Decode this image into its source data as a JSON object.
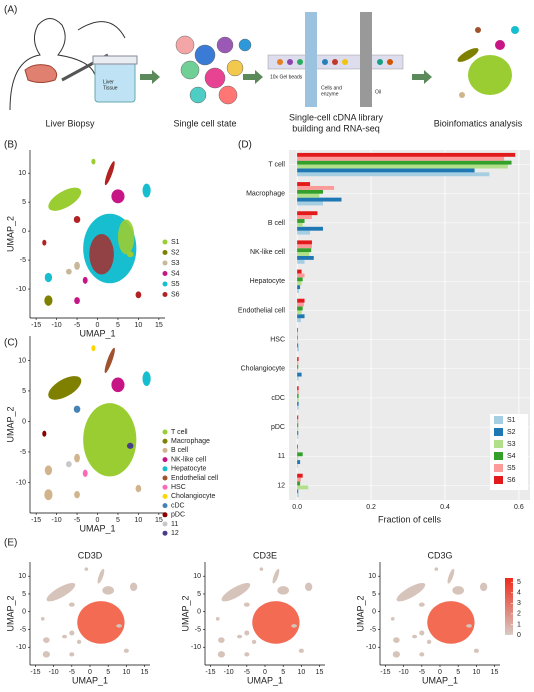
{
  "panel_labels": [
    "(A)",
    "(B)",
    "(C)",
    "(D)",
    "(E)"
  ],
  "diagram": {
    "steps": [
      [
        "Liver Biopsy"
      ],
      [
        "Single cell state"
      ],
      [
        "Single-cell cDNA library",
        "building and RNA-seq"
      ],
      [
        "Bioinfomatics analysis"
      ]
    ],
    "annotations": [
      "Liver",
      "Tissue",
      "10x Gel beads",
      "Cells and",
      "enzyme",
      "Oil"
    ]
  },
  "chart_data": [
    {
      "type": "scatter",
      "xlabel": "UMAP_1",
      "ylabel": "UMAP_2",
      "xlim": [
        -16.5,
        16.5
      ],
      "ylim": [
        -15,
        14
      ],
      "xticks": [
        -15,
        -10,
        -5,
        0,
        5,
        10,
        15
      ],
      "yticks": [
        10,
        5,
        0,
        -5,
        -10
      ],
      "series": [
        {
          "name": "S1",
          "color": "#9acd32"
        },
        {
          "name": "S2",
          "color": "#808000"
        },
        {
          "name": "S3",
          "color": "#c8b89a"
        },
        {
          "name": "S4",
          "color": "#c71585"
        },
        {
          "name": "S5",
          "color": "#17becf"
        },
        {
          "name": "S6",
          "color": "#b22222"
        }
      ]
    },
    {
      "type": "scatter",
      "xlabel": "UMAP_1",
      "ylabel": "UMAP_2",
      "xlim": [
        -16.5,
        16.5
      ],
      "ylim": [
        -15,
        14
      ],
      "xticks": [
        -15,
        -10,
        -5,
        0,
        5,
        10,
        15
      ],
      "yticks": [
        10,
        5,
        0,
        -5,
        -10
      ],
      "series": [
        {
          "name": "T cell",
          "color": "#9acd32"
        },
        {
          "name": "Macrophage",
          "color": "#808000"
        },
        {
          "name": "B cell",
          "color": "#d2b48c"
        },
        {
          "name": "NK-like cell",
          "color": "#c71585"
        },
        {
          "name": "Hepatocyte",
          "color": "#17becf"
        },
        {
          "name": "Endothelial cell",
          "color": "#a0522d"
        },
        {
          "name": "HSC",
          "color": "#ff69b4"
        },
        {
          "name": "Cholangiocyte",
          "color": "#ffd700"
        },
        {
          "name": "cDC",
          "color": "#4682b4"
        },
        {
          "name": "pDC",
          "color": "#8b0000"
        },
        {
          "name": "11",
          "color": "#c8c8c8"
        },
        {
          "name": "12",
          "color": "#483d8b"
        }
      ]
    },
    {
      "type": "bar",
      "orientation": "horizontal",
      "xlabel": "Fraction of cells",
      "categories": [
        "T cell",
        "Macrophage",
        "B cell",
        "NK-like cell",
        "Hepatocyte",
        "Endothelial cell",
        "HSC",
        "Cholangiocyte",
        "cDC",
        "pDC",
        "11",
        "12"
      ],
      "xlim": [
        -0.022,
        0.63
      ],
      "xticks": [
        {
          "value": 0,
          "label": "0.0"
        },
        {
          "value": 0.2,
          "label": "0.2"
        },
        {
          "value": 0.4,
          "label": "0.4"
        },
        {
          "value": 0.6,
          "label": "0.6"
        }
      ],
      "grid": true,
      "series": [
        {
          "name": "S1",
          "color": "#a6cee3",
          "values": [
            0.52,
            0.07,
            0.035,
            0.02,
            0.005,
            0.01,
            0.005,
            0.004,
            0.004,
            0.003,
            0.002,
            0.004
          ]
        },
        {
          "name": "S2",
          "color": "#1f78b4",
          "values": [
            0.48,
            0.12,
            0.07,
            0.045,
            0.008,
            0.02,
            0.003,
            0.012,
            0.004,
            0.003,
            0.008,
            0.003
          ]
        },
        {
          "name": "S3",
          "color": "#b2df8a",
          "values": [
            0.57,
            0.06,
            0.015,
            0.033,
            0.012,
            0.012,
            0.002,
            0.002,
            0.004,
            0.003,
            0.003,
            0.03
          ]
        },
        {
          "name": "S4",
          "color": "#33a02c",
          "values": [
            0.58,
            0.07,
            0.02,
            0.038,
            0.015,
            0.015,
            0.002,
            0.003,
            0.004,
            0.003,
            0.015,
            0.008
          ]
        },
        {
          "name": "S5",
          "color": "#fb9a99",
          "values": [
            0.56,
            0.1,
            0.04,
            0.04,
            0.02,
            0.018,
            0.002,
            0.003,
            0.004,
            0.003,
            0.002,
            0.01
          ]
        },
        {
          "name": "S6",
          "color": "#e31a1c",
          "values": [
            0.59,
            0.035,
            0.055,
            0.04,
            0.012,
            0.02,
            0.002,
            0.004,
            0.004,
            0.003,
            0.002,
            0.015
          ]
        }
      ]
    },
    {
      "type": "scatter",
      "title": "CD3D",
      "xlabel": "UMAP_1",
      "ylabel": "UMAP_2",
      "xlim": [
        -16.5,
        16.5
      ],
      "ylim": [
        -15,
        14
      ],
      "xticks": [
        -15,
        -10,
        -5,
        0,
        5,
        10,
        15
      ],
      "yticks": [
        10,
        5,
        0,
        -5,
        -10
      ]
    },
    {
      "type": "scatter",
      "title": "CD3E",
      "xlabel": "UMAP_1",
      "ylabel": "UMAP_2",
      "xlim": [
        -16.5,
        16.5
      ],
      "ylim": [
        -15,
        14
      ],
      "xticks": [
        -15,
        -10,
        -5,
        0,
        5,
        10,
        15
      ],
      "yticks": [
        10,
        5,
        0,
        -5,
        -10
      ]
    },
    {
      "type": "scatter",
      "title": "CD3G",
      "xlabel": "UMAP_1",
      "ylabel": "UMAP_2",
      "xlim": [
        -16.5,
        16.5
      ],
      "ylim": [
        -15,
        14
      ],
      "xticks": [
        -15,
        -10,
        -5,
        0,
        5,
        10,
        15
      ],
      "yticks": [
        10,
        5,
        0,
        -5,
        -10
      ],
      "colorbar": {
        "lim": [
          0,
          5.4
        ],
        "ticks": [
          0,
          1,
          2,
          3,
          4,
          5
        ],
        "colors": [
          "#d6cbc4",
          "#ef2b1c"
        ]
      }
    }
  ]
}
